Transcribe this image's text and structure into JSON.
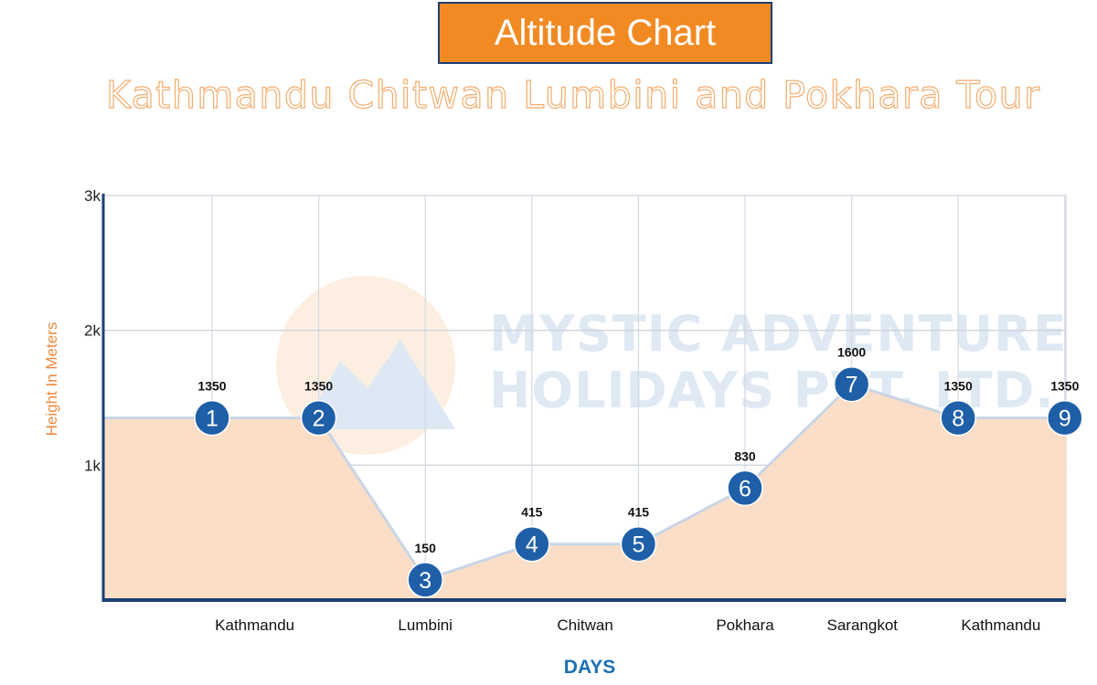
{
  "header": {
    "title": "Altitude Chart",
    "subtitle": "Kathmandu Chitwan Lumbini and Pokhara Tour"
  },
  "watermark": {
    "line1": "MYSTIC ADVENTURE",
    "line2": "HOLIDAYS PVT. LTD."
  },
  "colors": {
    "accent": "#f28a23",
    "marker": "#1f5fa8",
    "fill": "#fbdcc3",
    "line": "#c9d5e6",
    "axis": "#1d3f73"
  },
  "chart_data": {
    "type": "area",
    "xlabel": "DAYS",
    "ylabel": "Height In Meters",
    "ylim": [
      0,
      3000
    ],
    "yticks": [
      1000,
      2000,
      3000
    ],
    "ytick_labels": [
      "1k",
      "2k",
      "3k"
    ],
    "grid": true,
    "x": [
      1,
      2,
      3,
      4,
      5,
      6,
      7,
      8,
      9
    ],
    "values": [
      1350,
      1350,
      150,
      415,
      415,
      830,
      1600,
      1350,
      1350
    ],
    "point_labels": [
      "1",
      "2",
      "3",
      "4",
      "5",
      "6",
      "7",
      "8",
      "9"
    ],
    "location_labels": [
      {
        "text": "Kathmandu",
        "x": 1.4
      },
      {
        "text": "Lumbini",
        "x": 3
      },
      {
        "text": "Chitwan",
        "x": 4.5
      },
      {
        "text": "Pokhara",
        "x": 6
      },
      {
        "text": "Sarangkot",
        "x": 7.1
      },
      {
        "text": "Kathmandu",
        "x": 8.4
      }
    ]
  }
}
